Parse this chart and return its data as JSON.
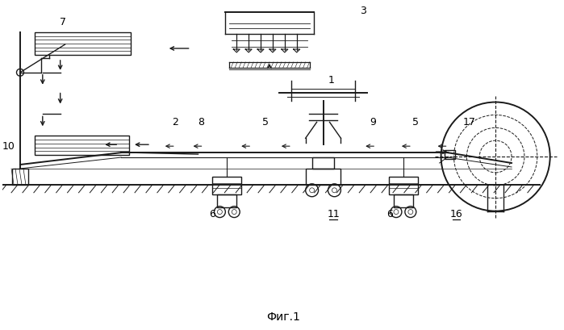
{
  "title": "Фиг.1",
  "bg": "#ffffff",
  "lc": "#1a1a1a",
  "fig_width": 6.99,
  "fig_height": 4.09,
  "dpi": 100
}
